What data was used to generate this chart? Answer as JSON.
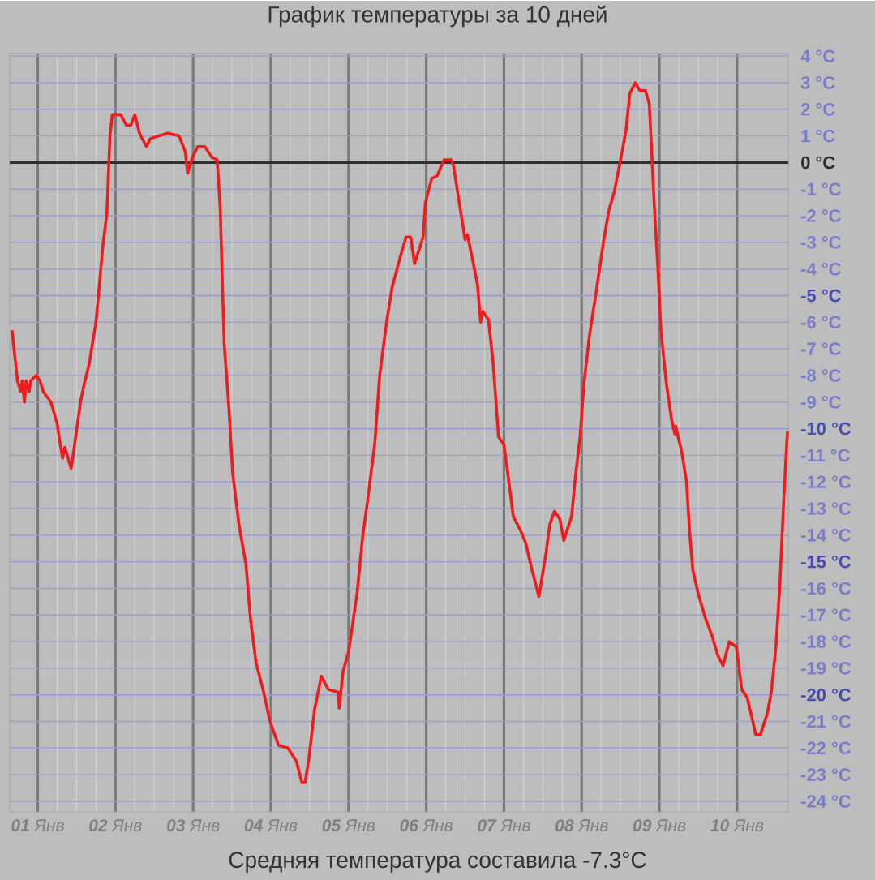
{
  "chart_data": {
    "type": "line",
    "title": "График температуры за 10 дней",
    "annotations": [
      "Средняя температура составила -7.3°C"
    ],
    "x": [
      0.67,
      0.71,
      0.74,
      0.78,
      0.8,
      0.83,
      0.85,
      0.89,
      0.91,
      0.98,
      1.03,
      1.07,
      1.17,
      1.25,
      1.28,
      1.32,
      1.35,
      1.43,
      1.48,
      1.55,
      1.6,
      1.66,
      1.75,
      1.79,
      1.84,
      1.89,
      1.93,
      1.96,
      2.07,
      2.14,
      2.2,
      2.25,
      2.31,
      2.4,
      2.45,
      2.67,
      2.82,
      2.9,
      2.93,
      2.99,
      3.06,
      3.15,
      3.24,
      3.31,
      3.35,
      3.37,
      3.4,
      3.46,
      3.51,
      3.59,
      3.68,
      3.74,
      3.81,
      3.9,
      3.99,
      4.1,
      4.22,
      4.33,
      4.4,
      4.44,
      4.49,
      4.56,
      4.65,
      4.74,
      4.87,
      4.88,
      4.93,
      5.0,
      5.11,
      5.18,
      5.25,
      5.34,
      5.4,
      5.49,
      5.56,
      5.67,
      5.74,
      5.8,
      5.85,
      5.96,
      5.99,
      6.07,
      6.14,
      6.23,
      6.32,
      6.35,
      6.43,
      6.5,
      6.53,
      6.6,
      6.66,
      6.7,
      6.73,
      6.8,
      6.86,
      6.93,
      7.0,
      7.05,
      7.12,
      7.21,
      7.28,
      7.36,
      7.45,
      7.54,
      7.59,
      7.65,
      7.72,
      7.77,
      7.87,
      7.92,
      7.98,
      8.03,
      8.1,
      8.19,
      8.28,
      8.35,
      8.42,
      8.5,
      8.57,
      8.62,
      8.69,
      8.75,
      8.82,
      8.87,
      8.91,
      8.94,
      8.98,
      9.02,
      9.09,
      9.16,
      9.2,
      9.21,
      9.29,
      9.35,
      9.39,
      9.43,
      9.5,
      9.59,
      9.68,
      9.75,
      9.82,
      9.9,
      9.99,
      10.06,
      10.13,
      10.21,
      10.24,
      10.3,
      10.39,
      10.44,
      10.5,
      10.55,
      10.6,
      10.64,
      10.65
    ],
    "series": [
      {
        "color": "#ee1c1c",
        "values": [
          -6.3,
          -7.4,
          -8.2,
          -8.6,
          -8.2,
          -9.0,
          -8.2,
          -8.6,
          -8.2,
          -8.0,
          -8.2,
          -8.6,
          -9.0,
          -9.8,
          -10.4,
          -11.1,
          -10.7,
          -11.5,
          -10.5,
          -9.0,
          -8.3,
          -7.6,
          -6.0,
          -4.7,
          -3.1,
          -1.9,
          1.0,
          1.8,
          1.8,
          1.4,
          1.4,
          1.8,
          1.1,
          0.6,
          0.9,
          1.1,
          1.0,
          0.4,
          -0.4,
          0.2,
          0.6,
          0.6,
          0.2,
          0.1,
          -1.8,
          -3.9,
          -6.8,
          -9.2,
          -11.7,
          -13.6,
          -15.1,
          -17.2,
          -18.8,
          -19.8,
          -21.0,
          -21.9,
          -22.0,
          -22.5,
          -23.3,
          -23.3,
          -22.4,
          -20.6,
          -19.3,
          -19.8,
          -19.9,
          -20.5,
          -19.1,
          -18.4,
          -16.2,
          -14.1,
          -12.6,
          -10.5,
          -8.0,
          -6.0,
          -4.7,
          -3.5,
          -2.8,
          -2.8,
          -3.8,
          -2.8,
          -1.5,
          -0.6,
          -0.5,
          0.1,
          0.1,
          -0.1,
          -1.6,
          -2.9,
          -2.7,
          -3.7,
          -4.6,
          -6.0,
          -5.6,
          -5.9,
          -7.5,
          -10.3,
          -10.6,
          -11.7,
          -13.3,
          -13.8,
          -14.3,
          -15.3,
          -16.3,
          -14.7,
          -13.6,
          -13.1,
          -13.4,
          -14.2,
          -13.3,
          -11.8,
          -10.3,
          -8.3,
          -6.5,
          -4.8,
          -3.0,
          -1.8,
          -1.1,
          0.1,
          1.2,
          2.6,
          3.0,
          2.7,
          2.7,
          2.2,
          -0.1,
          -1.9,
          -3.9,
          -6.3,
          -8.3,
          -9.7,
          -10.2,
          -9.9,
          -10.9,
          -12.0,
          -13.9,
          -15.3,
          -16.2,
          -17.1,
          -17.8,
          -18.5,
          -18.9,
          -18.0,
          -18.2,
          -19.8,
          -20.1,
          -21.1,
          -21.5,
          -21.5,
          -20.7,
          -19.9,
          -18.2,
          -15.9,
          -12.7,
          -10.5,
          -10.1
        ]
      }
    ],
    "xlim": [
      0.64,
      10.66
    ],
    "ylim": [
      -24.4,
      4.1
    ],
    "xticks": [
      {
        "value": 1,
        "label": "**01** Янв"
      },
      {
        "value": 2,
        "label": "**02** Янв"
      },
      {
        "value": 3,
        "label": "**03** Янв"
      },
      {
        "value": 4,
        "label": "**04** Янв"
      },
      {
        "value": 5,
        "label": "**05** Янв"
      },
      {
        "value": 6,
        "label": "**06** Янв"
      },
      {
        "value": 7,
        "label": "**07** Янв"
      },
      {
        "value": 8,
        "label": "**08** Янв"
      },
      {
        "value": 9,
        "label": "**09** Янв"
      },
      {
        "value": 10,
        "label": "**10** Янв"
      }
    ],
    "yticks": [
      {
        "value": 4,
        "label": "4 °C"
      },
      {
        "value": 3,
        "label": "3 °C"
      },
      {
        "value": 2,
        "label": "2 °C"
      },
      {
        "value": 1,
        "label": "1 °C"
      },
      {
        "value": 0,
        "label": "0 °C"
      },
      {
        "value": -1,
        "label": "-1 °C"
      },
      {
        "value": -2,
        "label": "-2 °C"
      },
      {
        "value": -3,
        "label": "-3 °C"
      },
      {
        "value": -4,
        "label": "-4 °C"
      },
      {
        "value": -5,
        "label": "-5 °C"
      },
      {
        "value": -6,
        "label": "-6 °C"
      },
      {
        "value": -7,
        "label": "-7 °C"
      },
      {
        "value": -8,
        "label": "-8 °C"
      },
      {
        "value": -9,
        "label": "-9 °C"
      },
      {
        "value": -10,
        "label": "-10 °C"
      },
      {
        "value": -11,
        "label": "-11 °C"
      },
      {
        "value": -12,
        "label": "-12 °C"
      },
      {
        "value": -13,
        "label": "-13 °C"
      },
      {
        "value": -14,
        "label": "-14 °C"
      },
      {
        "value": -15,
        "label": "-15 °C"
      },
      {
        "value": -16,
        "label": "-16 °C"
      },
      {
        "value": -17,
        "label": "-17 °C"
      },
      {
        "value": -18,
        "label": "-18 °C"
      },
      {
        "value": -19,
        "label": "-19 °C"
      },
      {
        "value": -20,
        "label": "-20 °C"
      },
      {
        "value": -21,
        "label": "-21 °C"
      },
      {
        "value": -22,
        "label": "-22 °C"
      },
      {
        "value": -23,
        "label": "-23 °C"
      },
      {
        "value": -24,
        "label": "-24 °C"
      }
    ],
    "grid": true,
    "marker": "none",
    "line_style": "solid"
  }
}
